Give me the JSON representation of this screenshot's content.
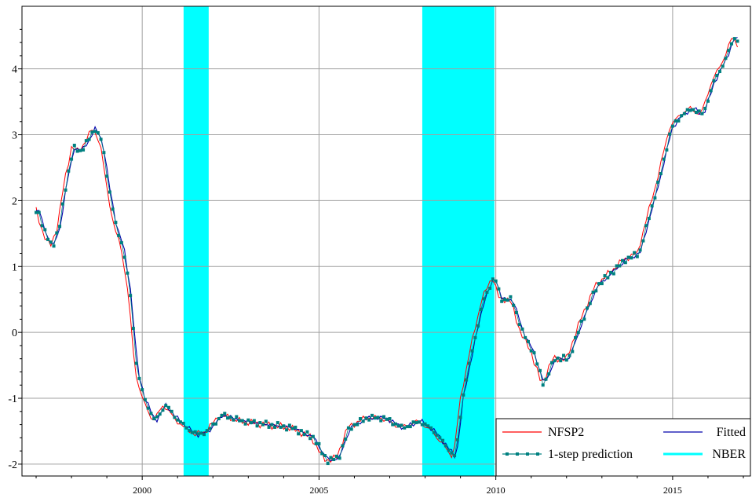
{
  "chart_data": {
    "type": "line",
    "title": "",
    "xlabel": "",
    "ylabel": "",
    "xlim": [
      1996.6,
      2017.2
    ],
    "ylim": [
      -2.18,
      4.95
    ],
    "xticks": [
      2000,
      2005,
      2010,
      2015
    ],
    "xtick_labels": [
      "2000",
      "2005",
      "2010",
      "2015"
    ],
    "yticks": [
      -2,
      -1,
      0,
      1,
      2,
      3,
      4
    ],
    "ytick_labels": [
      "-2",
      "-1",
      "0",
      "1",
      "2",
      "3",
      "4"
    ],
    "grid": true,
    "legend_position": "bottom-right",
    "legend": {
      "entries": [
        {
          "label": "NFSP2",
          "color": "#ff0000",
          "style": "line"
        },
        {
          "label": "Fitted",
          "color": "#0000aa",
          "style": "line"
        },
        {
          "label": "1-step prediction",
          "color": "#008080",
          "style": "line-markers"
        },
        {
          "label": "NBER",
          "color": "#00ffff",
          "style": "band"
        }
      ]
    },
    "shaded_regions": [
      {
        "name": "NBER",
        "start": 2001.17,
        "end": 2001.88,
        "color": "#00ffff"
      },
      {
        "name": "NBER",
        "start": 2007.92,
        "end": 2009.96,
        "color": "#00ffff"
      }
    ],
    "anchor_points": {
      "x": [
        1997.0,
        1997.2,
        1997.4,
        1997.6,
        1997.8,
        1998.0,
        1998.2,
        1998.4,
        1998.6,
        1998.8,
        1999.0,
        1999.2,
        1999.4,
        1999.6,
        1999.8,
        2000.0,
        2000.3,
        2000.6,
        2000.9,
        2001.2,
        2001.5,
        2001.8,
        2002.2,
        2002.8,
        2003.5,
        2004.2,
        2004.8,
        2005.0,
        2005.2,
        2005.5,
        2005.8,
        2006.3,
        2006.8,
        2007.3,
        2007.8,
        2008.2,
        2008.5,
        2008.8,
        2009.0,
        2009.3,
        2009.6,
        2009.9,
        2010.1,
        2010.4,
        2010.7,
        2011.0,
        2011.3,
        2011.6,
        2012.0,
        2012.4,
        2012.8,
        2013.2,
        2013.6,
        2014.0,
        2014.3,
        2014.6,
        2014.9,
        2015.2,
        2015.5,
        2015.8,
        2016.1,
        2016.4,
        2016.7,
        2016.9
      ],
      "y": [
        1.85,
        1.5,
        1.3,
        1.6,
        2.3,
        2.8,
        2.75,
        2.9,
        3.1,
        2.9,
        2.2,
        1.6,
        1.3,
        0.6,
        -0.6,
        -1.0,
        -1.35,
        -1.1,
        -1.3,
        -1.45,
        -1.55,
        -1.5,
        -1.25,
        -1.35,
        -1.4,
        -1.45,
        -1.6,
        -1.8,
        -1.95,
        -1.9,
        -1.45,
        -1.3,
        -1.3,
        -1.45,
        -1.35,
        -1.5,
        -1.7,
        -1.9,
        -1.0,
        -0.2,
        0.5,
        0.85,
        0.5,
        0.5,
        0.0,
        -0.3,
        -0.8,
        -0.4,
        -0.4,
        0.2,
        0.7,
        0.9,
        1.1,
        1.2,
        1.8,
        2.4,
        3.1,
        3.3,
        3.4,
        3.3,
        3.8,
        4.1,
        4.5,
        4.3
      ]
    },
    "series": [
      {
        "name": "NFSP2",
        "color": "#ff0000",
        "noise": 0.06,
        "lag": 0,
        "markers": false,
        "width": 1.0,
        "x": [],
        "values": []
      },
      {
        "name": "Fitted",
        "color": "#0000aa",
        "noise": 0.04,
        "lag": 0.08,
        "markers": false,
        "width": 1.1,
        "x": [],
        "values": []
      },
      {
        "name": "1-step prediction",
        "color": "#008080",
        "noise": 0.05,
        "lag": 0.06,
        "markers": true,
        "width": 0.8,
        "x": [],
        "values": []
      }
    ]
  }
}
